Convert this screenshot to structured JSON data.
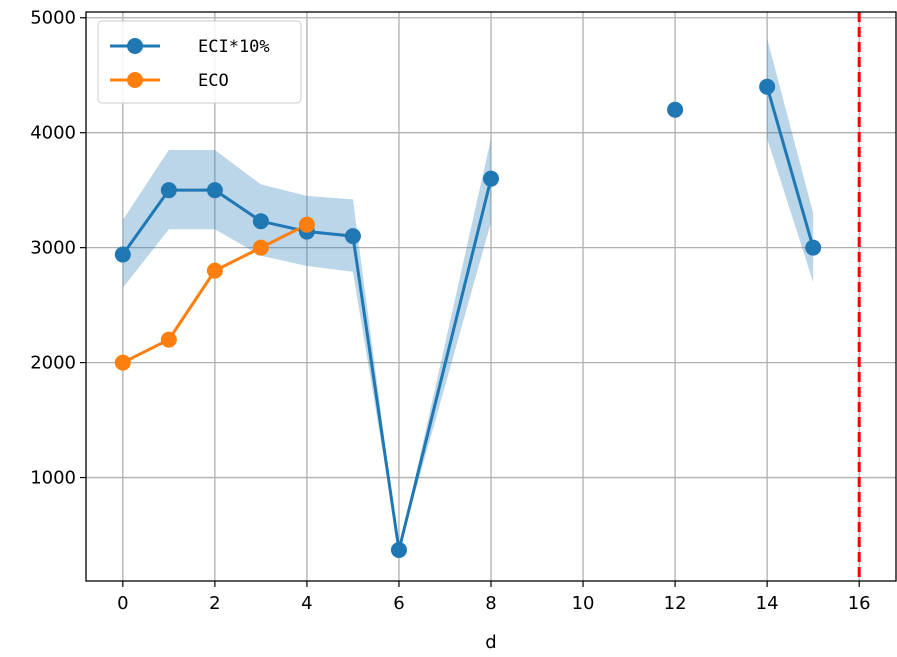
{
  "chart_data": {
    "type": "line",
    "title": "",
    "xlabel": "d",
    "ylabel": "",
    "xlim": [
      -0.8,
      16.8
    ],
    "ylim": [
      100,
      5050
    ],
    "xticks": [
      0,
      2,
      4,
      6,
      8,
      10,
      12,
      14,
      16
    ],
    "yticks": [
      1000,
      2000,
      3000,
      4000,
      5000
    ],
    "grid": true,
    "legend_position": "top-left",
    "series": [
      {
        "name": "ECI*10%",
        "color": "#1f77b4",
        "segments": [
          [
            [
              0,
              2940
            ],
            [
              1,
              3500
            ],
            [
              2,
              3500
            ],
            [
              3,
              3230
            ],
            [
              4,
              3140
            ],
            [
              5,
              3100
            ],
            [
              6,
              370
            ],
            [
              8,
              3600
            ]
          ],
          [
            [
              12,
              4200
            ]
          ],
          [
            [
              14,
              4400
            ],
            [
              15,
              3000
            ]
          ]
        ],
        "bands": [
          [
            [
              0,
              2650,
              3240
            ],
            [
              1,
              3160,
              3850
            ],
            [
              2,
              3160,
              3850
            ],
            [
              3,
              2930,
              3550
            ],
            [
              4,
              2840,
              3450
            ],
            [
              5,
              2790,
              3420
            ],
            [
              6,
              370,
              370
            ],
            [
              8,
              3220,
              3950
            ]
          ],
          [
            [
              14,
              3950,
              4820
            ],
            [
              15,
              2700,
              3300
            ]
          ]
        ]
      },
      {
        "name": "ECO",
        "color": "#ff7f0e",
        "segments": [
          [
            [
              0,
              2000
            ],
            [
              1,
              2200
            ],
            [
              2,
              2800
            ],
            [
              3,
              3000
            ],
            [
              4,
              3200
            ]
          ]
        ]
      }
    ],
    "reference_line": {
      "x": 16,
      "color": "#ff0000",
      "style": "dashed"
    }
  }
}
